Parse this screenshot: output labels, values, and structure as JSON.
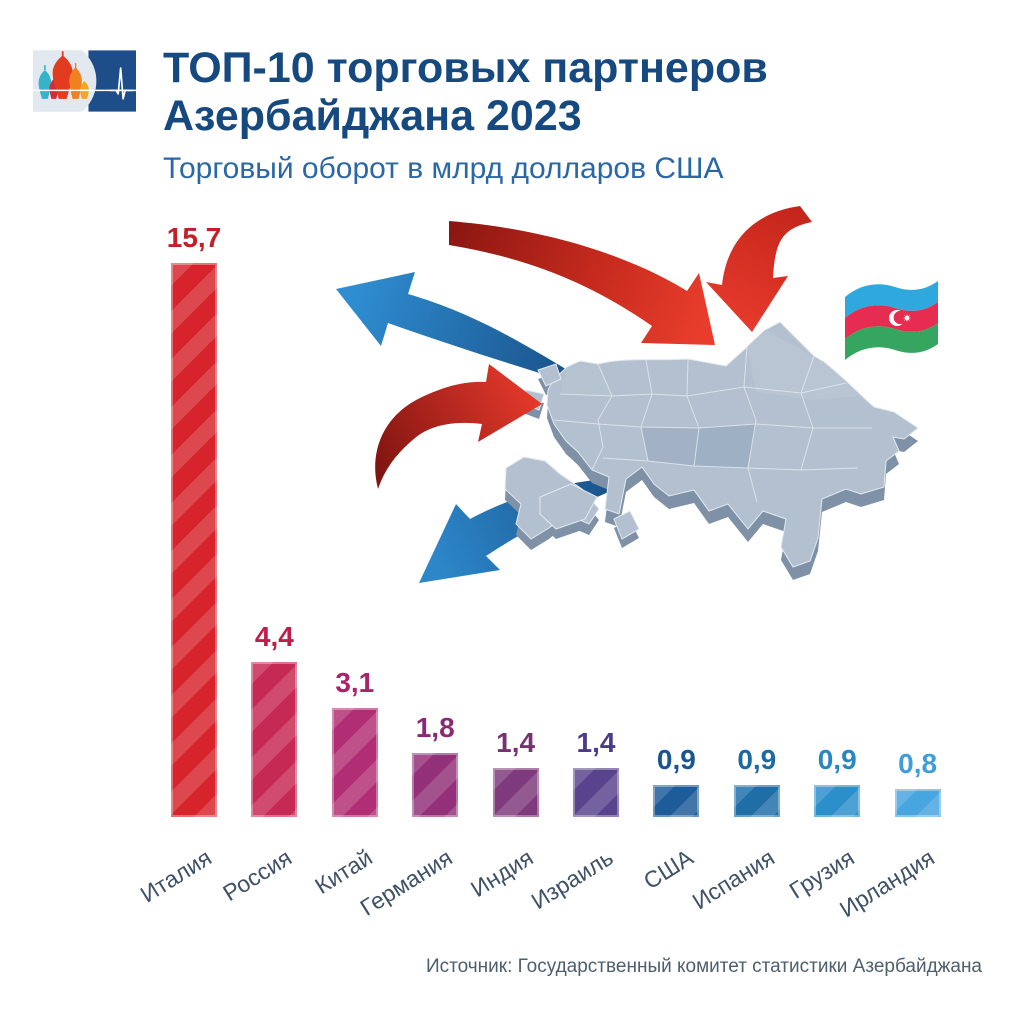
{
  "header": {
    "title_line1": "ТОП-10 торговых партнеров",
    "title_line2": "Азербайджана 2023",
    "subtitle": "Торговый оборот в млрд долларов США",
    "title_color": "#15497f",
    "subtitle_color": "#2a67a6"
  },
  "logo": {
    "panel_color": "#1d4e8a",
    "icons": [
      "cathedral-domes-icon",
      "ecg-pulse-icon"
    ]
  },
  "illustration": {
    "map_name": "azerbaijan-3d-map",
    "flag_name": "azerbaijan-flag",
    "flag_colors": {
      "blue": "#2fa9dd",
      "red": "#e62c50",
      "green": "#35a55f"
    },
    "import_arrow_color": "#e2382a",
    "export_arrow_color": "#2a84c6"
  },
  "chart_data": {
    "type": "bar",
    "title": "ТОП-10 торговых партнеров Азербайджана 2023",
    "subtitle": "Торговый оборот в млрд долларов США",
    "unit": "млрд долларов США",
    "categories": [
      "Италия",
      "Россия",
      "Китай",
      "Германия",
      "Индия",
      "Израиль",
      "США",
      "Испания",
      "Грузия",
      "Ирландия"
    ],
    "values": [
      15.7,
      4.4,
      3.1,
      1.8,
      1.4,
      1.4,
      0.9,
      0.9,
      0.9,
      0.8
    ],
    "value_labels": [
      "15,7",
      "4,4",
      "3,1",
      "1,8",
      "1,4",
      "1,4",
      "0,9",
      "0,9",
      "0,9",
      "0,8"
    ],
    "bar_colors": [
      "#d7242c",
      "#c62953",
      "#b12e74",
      "#923179",
      "#7e3a7c",
      "#5a438d",
      "#1e5c99",
      "#1f6ea6",
      "#2b8fc9",
      "#47a5e0"
    ],
    "value_label_colors": [
      "#c41f27",
      "#c01e4a",
      "#a9246c",
      "#8a2a74",
      "#76336f",
      "#4c3c86",
      "#1a5592",
      "#1d6aa3",
      "#2886c1",
      "#3f9ed9"
    ],
    "category_label_color": "#3e5166",
    "ylim": [
      0,
      16
    ],
    "grid": false,
    "legend": false
  },
  "footer": {
    "source": "Источник: Государственный комитет статистики Азербайджана"
  }
}
